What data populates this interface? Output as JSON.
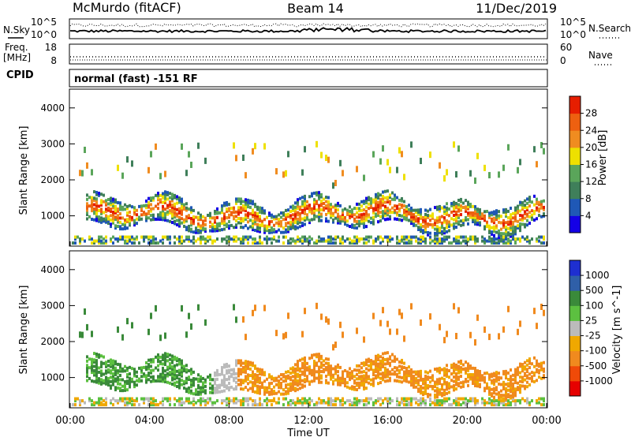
{
  "header": {
    "station": "McMurdo (fitACF)",
    "beam": "Beam 14",
    "date": "11/Dec/2019"
  },
  "chart_data": [
    {
      "type": "line",
      "panel": "noise",
      "left_label": "N.Sky",
      "right_label": "N.Search",
      "y_ticks_left": [
        "10^5",
        "10^0"
      ],
      "y_ticks_right": [
        "10^5",
        "10^0"
      ]
    },
    {
      "type": "line",
      "panel": "frequency",
      "left_label_lines": [
        "Freq.",
        "[MHz]"
      ],
      "right_label": "Nave",
      "y_ticks_left": [
        "18",
        "8"
      ],
      "y_ticks_right": [
        "60",
        "0"
      ],
      "levels": {
        "freq_mhz": 10,
        "nave": 10
      }
    },
    {
      "type": "table",
      "panel": "cpid",
      "label": "CPID",
      "value": "normal (fast) -151 RF"
    },
    {
      "type": "heatmap",
      "panel": "power",
      "ylabel": "Slant Range [km]",
      "yticks": [
        "1000",
        "2000",
        "3000",
        "4000"
      ],
      "ylim": [
        180,
        4500
      ],
      "colorbar": {
        "label": "Power [dB]",
        "ticks": [
          "4",
          "8",
          "12",
          "16",
          "20",
          "24",
          "28"
        ],
        "colors": [
          "#1400e6",
          "#1f58b6",
          "#3f7f5a",
          "#5aa55a",
          "#eee000",
          "#f08c20",
          "#ee6010",
          "#e61e00"
        ]
      },
      "xlabel": "Time UT",
      "xticks": [
        "00:00",
        "04:00",
        "08:00",
        "12:00",
        "16:00",
        "20:00",
        "00:00"
      ]
    },
    {
      "type": "heatmap",
      "panel": "velocity",
      "ylabel": "Slant Range [km]",
      "yticks": [
        "1000",
        "2000",
        "3000",
        "4000"
      ],
      "ylim": [
        180,
        4500
      ],
      "colorbar": {
        "label": "Velocity [m s^-1]",
        "ticks": [
          "-1000",
          "-500",
          "-100",
          "-25",
          "25",
          "100",
          "500",
          "1000"
        ],
        "colors": [
          "#e60000",
          "#f04a08",
          "#f08a1e",
          "#f0a800",
          "#bbbbbb",
          "#5cc040",
          "#3a8a3a",
          "#2f5fa8",
          "#1e2fd0"
        ]
      },
      "xlabel": "Time UT",
      "xticks": [
        "00:00",
        "04:00",
        "08:00",
        "12:00",
        "16:00",
        "20:00",
        "00:00"
      ]
    }
  ]
}
